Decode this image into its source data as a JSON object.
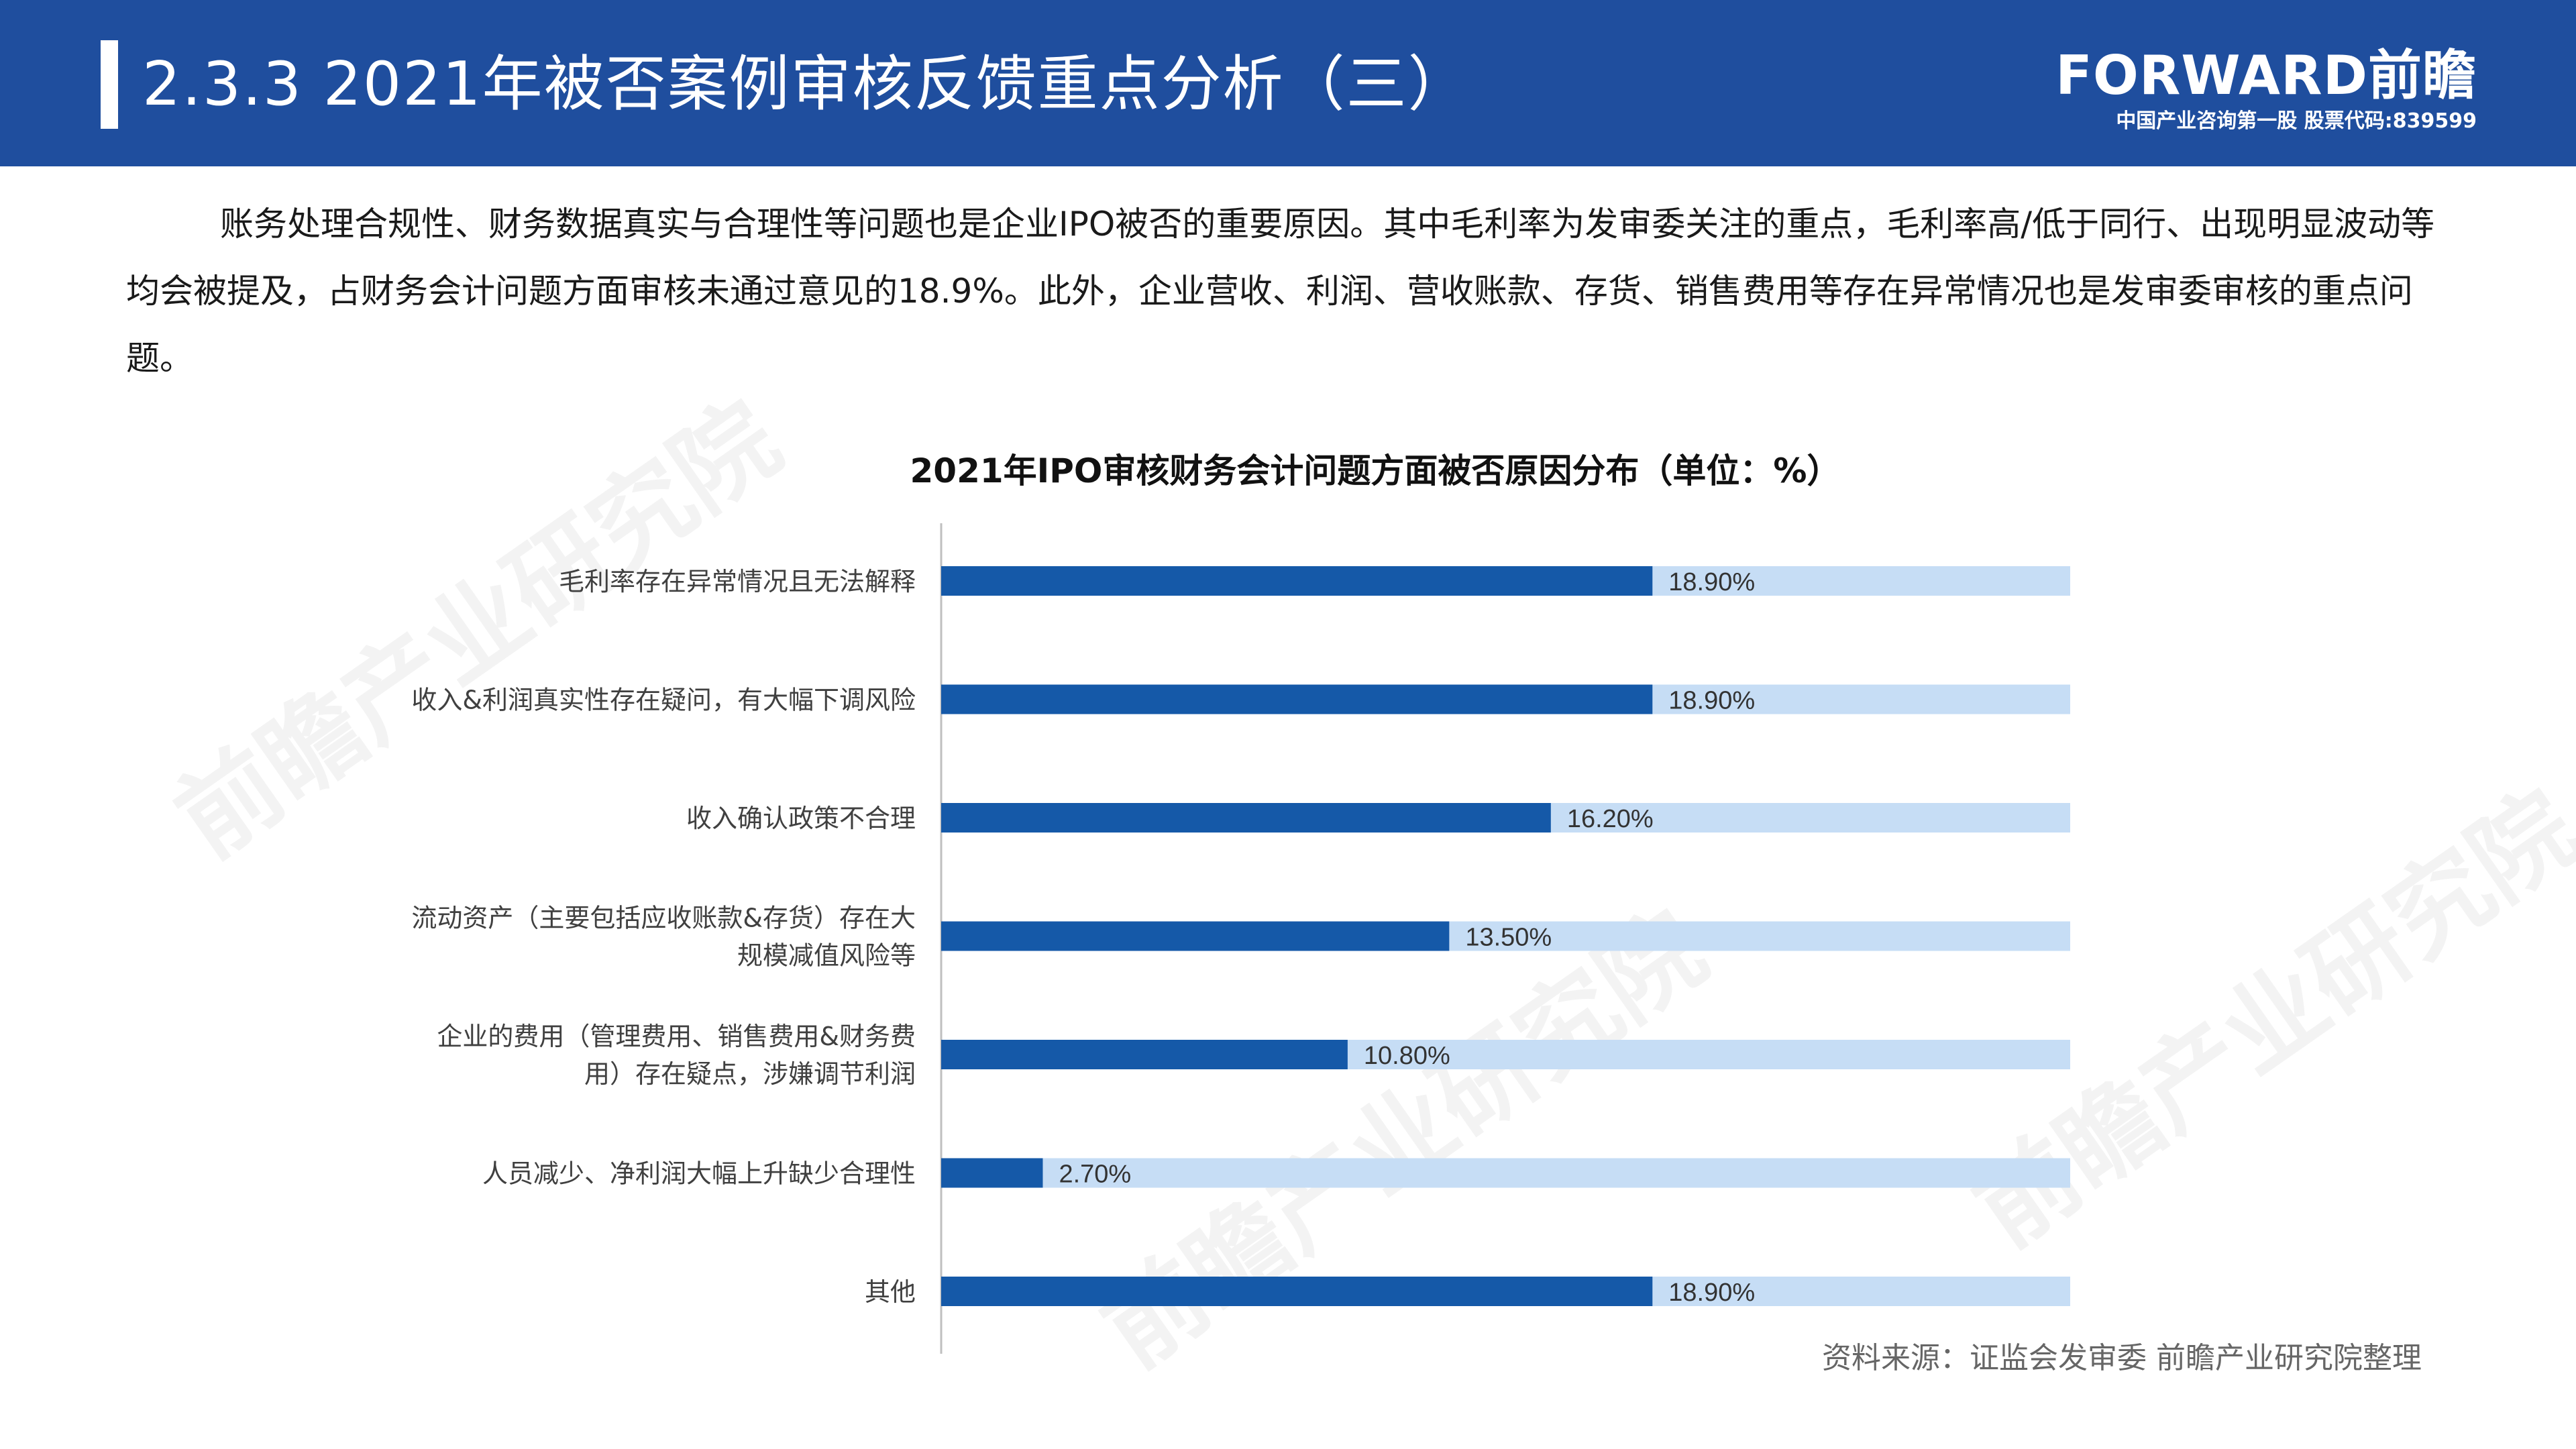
{
  "header": {
    "title": "2.3.3 2021年被否案例审核反馈重点分析（三）",
    "brand_name": "FORWARD前瞻",
    "brand_sub": "中国产业咨询第一股 股票代码:839599"
  },
  "intro": "账务处理合规性、财务数据真实与合理性等问题也是企业IPO被否的重要原因。其中毛利率为发审委关注的重点，毛利率高/低于同行、出现明显波动等均会被提及，占财务会计问题方面审核未通过意见的18.9%。此外，企业营收、利润、营收账款、存货、销售费用等存在异常情况也是发审委审核的重点问题。",
  "watermark": "前瞻产业研究院",
  "colors": {
    "header": "#1f4e9e",
    "bar": "#1559a8",
    "track": "#c6ddf5"
  },
  "chart_data": {
    "type": "bar",
    "orientation": "horizontal",
    "title": "2021年IPO审核财务会计问题方面被否原因分布（单位：%）",
    "categories": [
      [
        "毛利率存在异常情况且无法解释"
      ],
      [
        "收入&利润真实性存在疑问，有大幅下调风险"
      ],
      [
        "收入确认政策不合理"
      ],
      [
        "流动资产（主要包括应收账款&存货）存在大",
        "规模减值风险等"
      ],
      [
        "企业的费用（管理费用、销售费用&财务费",
        "用）存在疑点，涉嫌调节利润"
      ],
      [
        "人员减少、净利润大幅上升缺少合理性"
      ],
      [
        "其他"
      ]
    ],
    "values": [
      18.9,
      18.9,
      16.2,
      13.5,
      10.8,
      2.7,
      18.9
    ],
    "labels": [
      "18.90%",
      "18.90%",
      "16.20%",
      "13.50%",
      "10.80%",
      "2.70%",
      "18.90%"
    ],
    "xlim": [
      0,
      30
    ],
    "grid": false,
    "legend": "none"
  },
  "source": "资料来源：证监会发审委 前瞻产业研究院整理"
}
